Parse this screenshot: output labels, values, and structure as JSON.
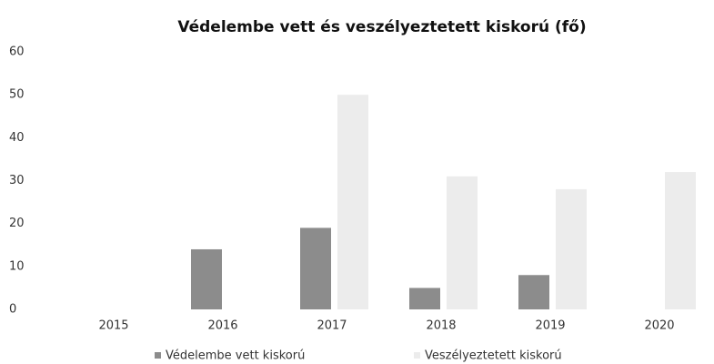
{
  "chart_data": {
    "type": "bar",
    "title": "Védelembe vett és veszélyeztetett kiskorú (fő)",
    "categories": [
      "2015",
      "2016",
      "2017",
      "2018",
      "2019",
      "2020"
    ],
    "series": [
      {
        "name": "Védelembe vett kiskorú",
        "color": "#8c8c8c",
        "values": [
          0,
          14,
          19,
          5,
          8,
          0
        ]
      },
      {
        "name": "Veszélyeztetett kiskorú",
        "color": "#ececec",
        "values": [
          0,
          0,
          50,
          31,
          28,
          32
        ]
      }
    ],
    "ylim": [
      0,
      60
    ],
    "yticks": [
      0,
      10,
      20,
      30,
      40,
      50,
      60
    ],
    "grid": false,
    "legend": "bottom"
  }
}
